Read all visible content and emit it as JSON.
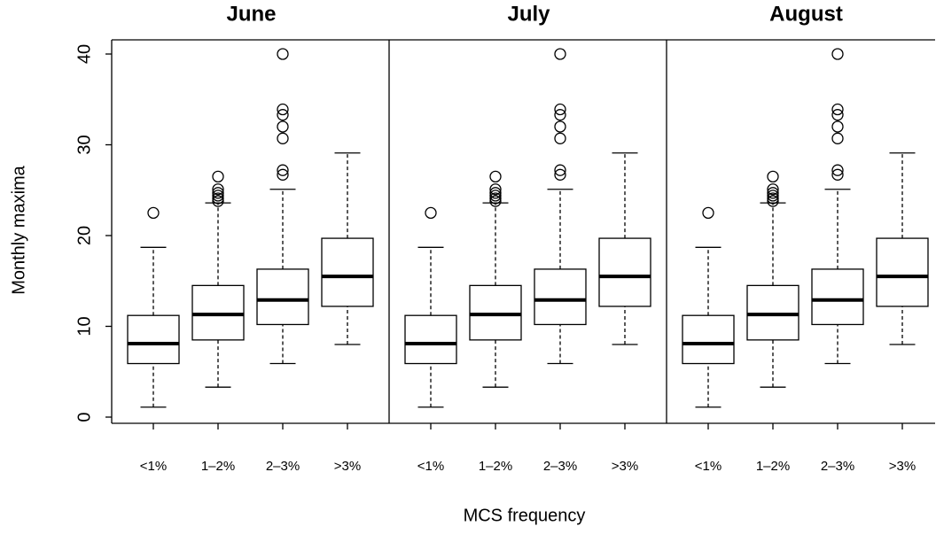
{
  "chart_data": [
    {
      "type": "box",
      "title": "June",
      "ylabel": "Monthly maxima",
      "categories": [
        "<1%",
        "1–2%",
        "2–3%",
        ">3%"
      ],
      "ylim": [
        0,
        40
      ],
      "yticks": [
        0,
        10,
        20,
        30,
        40
      ],
      "boxes": [
        {
          "whislo": 1.1,
          "q1": 5.9,
          "med": 8.1,
          "q3": 11.2,
          "whishi": 18.7,
          "fliers": [
            22.5
          ]
        },
        {
          "whislo": 3.3,
          "q1": 8.5,
          "med": 11.3,
          "q3": 14.5,
          "whishi": 23.6,
          "fliers": [
            23.8,
            24.1,
            24.4,
            24.7,
            25.1,
            26.5
          ]
        },
        {
          "whislo": 5.9,
          "q1": 10.2,
          "med": 12.9,
          "q3": 16.3,
          "whishi": 25.1,
          "fliers": [
            26.7,
            27.2,
            30.7,
            32.0,
            33.3,
            33.9,
            40.0
          ]
        },
        {
          "whislo": 8.0,
          "q1": 12.2,
          "med": 15.5,
          "q3": 19.7,
          "whishi": 29.1,
          "fliers": []
        }
      ]
    },
    {
      "type": "box",
      "title": "July",
      "xlabel": "MCS frequency",
      "categories": [
        "<1%",
        "1–2%",
        "2–3%",
        ">3%"
      ],
      "ylim": [
        0,
        40
      ],
      "boxes": [
        {
          "whislo": 1.1,
          "q1": 5.9,
          "med": 8.1,
          "q3": 11.2,
          "whishi": 18.7,
          "fliers": [
            22.5
          ]
        },
        {
          "whislo": 3.3,
          "q1": 8.5,
          "med": 11.3,
          "q3": 14.5,
          "whishi": 23.6,
          "fliers": [
            23.8,
            24.1,
            24.4,
            24.7,
            25.1,
            26.5
          ]
        },
        {
          "whislo": 5.9,
          "q1": 10.2,
          "med": 12.9,
          "q3": 16.3,
          "whishi": 25.1,
          "fliers": [
            26.7,
            27.2,
            30.7,
            32.0,
            33.3,
            33.9,
            40.0
          ]
        },
        {
          "whislo": 8.0,
          "q1": 12.2,
          "med": 15.5,
          "q3": 19.7,
          "whishi": 29.1,
          "fliers": []
        }
      ]
    },
    {
      "type": "box",
      "title": "August",
      "categories": [
        "<1%",
        "1–2%",
        "2–3%",
        ">3%"
      ],
      "ylim": [
        0,
        40
      ],
      "boxes": [
        {
          "whislo": 1.1,
          "q1": 5.9,
          "med": 8.1,
          "q3": 11.2,
          "whishi": 18.7,
          "fliers": [
            22.5
          ]
        },
        {
          "whislo": 3.3,
          "q1": 8.5,
          "med": 11.3,
          "q3": 14.5,
          "whishi": 23.6,
          "fliers": [
            23.8,
            24.1,
            24.4,
            24.7,
            25.1,
            26.5
          ]
        },
        {
          "whislo": 5.9,
          "q1": 10.2,
          "med": 12.9,
          "q3": 16.3,
          "whishi": 25.1,
          "fliers": [
            26.7,
            27.2,
            30.7,
            32.0,
            33.3,
            33.9,
            40.0
          ]
        },
        {
          "whislo": 8.0,
          "q1": 12.2,
          "med": 15.5,
          "q3": 19.7,
          "whishi": 29.1,
          "fliers": []
        }
      ]
    }
  ]
}
